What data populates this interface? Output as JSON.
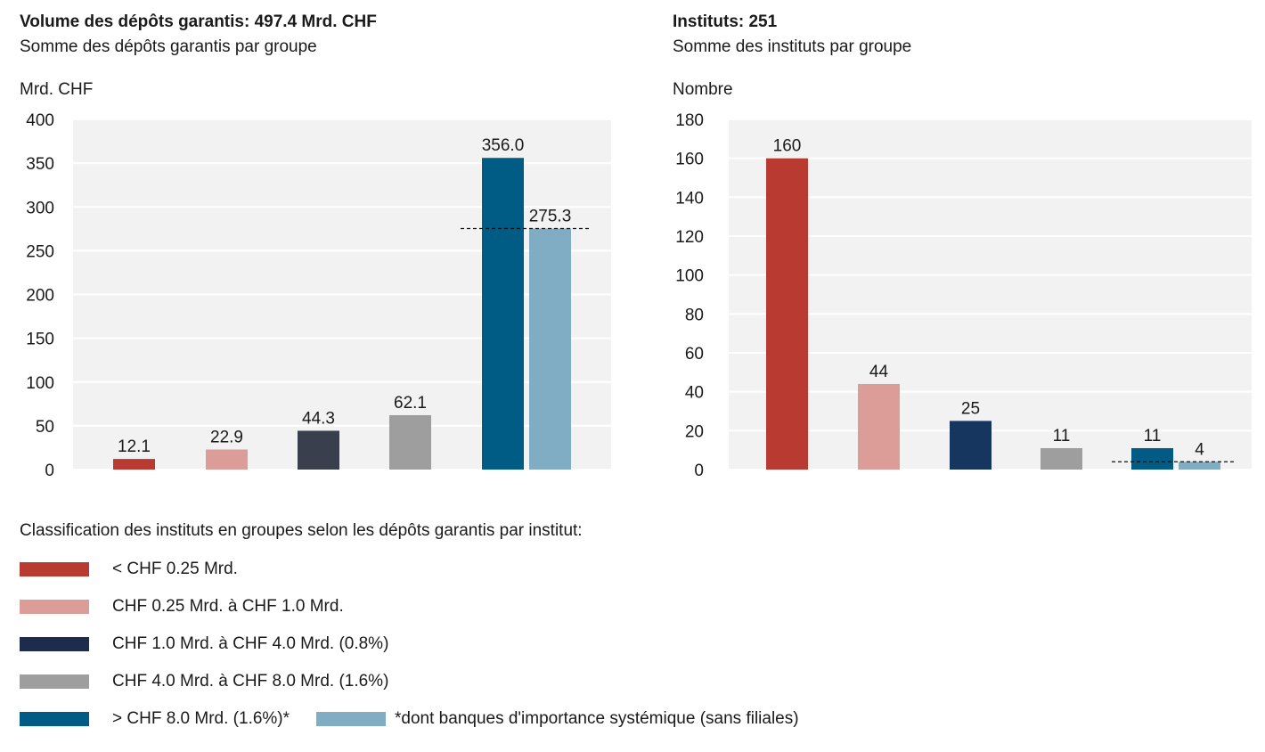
{
  "colors": {
    "g1": "#b83a30",
    "g2": "#dc9c98",
    "g3": "#3a3f4e",
    "g3r": "#16365f",
    "g4": "#9e9e9e",
    "g5": "#005b85",
    "g6": "#80adc4",
    "plot_bg": "#f2f2f2"
  },
  "left": {
    "title": "Volume des dépôts garantis: 497.4 Mrd. CHF",
    "subtitle": "Somme des dépôts garantis par groupe",
    "unit": "Mrd. CHF"
  },
  "right": {
    "title": "Instituts: 251",
    "subtitle": "Somme des instituts par groupe",
    "unit": "Nombre"
  },
  "legend": {
    "heading": "Classification des instituts en groupes selon les dépôts garantis par institut:",
    "items": [
      "< CHF 0.25 Mrd.",
      "CHF 0.25 Mrd. à CHF 1.0 Mrd.",
      "CHF 1.0 Mrd. à CHF 4.0 Mrd. (0.8%)",
      "CHF 4.0 Mrd. à CHF 8.0 Mrd. (1.6%)",
      "> CHF 8.0 Mrd. (1.6%)*",
      "*dont banques d'importance systémique (sans filiales)"
    ]
  },
  "chart_data": [
    {
      "type": "bar",
      "title": "Volume des dépôts garantis: 497.4 Mrd. CHF",
      "subtitle": "Somme des dépôts garantis par groupe",
      "ylabel": "Mrd. CHF",
      "ylim": [
        0,
        400
      ],
      "yticks": [
        0,
        50,
        100,
        150,
        200,
        250,
        300,
        350,
        400
      ],
      "grid": true,
      "series": [
        {
          "name": "< CHF 0.25 Mrd.",
          "color": "#b83a30",
          "value": 12.1,
          "label": "12.1"
        },
        {
          "name": "CHF 0.25 Mrd. à CHF 1.0 Mrd.",
          "color": "#dc9c98",
          "value": 22.9,
          "label": "22.9"
        },
        {
          "name": "CHF 1.0 Mrd. à CHF 4.0 Mrd. (0.8%)",
          "color": "#3a3f4e",
          "value": 44.3,
          "label": "44.3"
        },
        {
          "name": "CHF 4.0 Mrd. à CHF 8.0 Mrd. (1.6%)",
          "color": "#9e9e9e",
          "value": 62.1,
          "label": "62.1"
        },
        {
          "name": "> CHF 8.0 Mrd. (1.6%)*",
          "color": "#005b85",
          "value": 356.0,
          "label": "356.0"
        },
        {
          "name": "*dont banques d'importance systémique (sans filiales)",
          "color": "#80adc4",
          "value": 275.3,
          "label": "275.3"
        }
      ],
      "reference_line": 275.3
    },
    {
      "type": "bar",
      "title": "Instituts: 251",
      "subtitle": "Somme des instituts par groupe",
      "ylabel": "Nombre",
      "ylim": [
        0,
        180
      ],
      "yticks": [
        0,
        20,
        40,
        60,
        80,
        100,
        120,
        140,
        160,
        180
      ],
      "grid": true,
      "series": [
        {
          "name": "< CHF 0.25 Mrd.",
          "color": "#b83a30",
          "value": 160,
          "label": "160"
        },
        {
          "name": "CHF 0.25 Mrd. à CHF 1.0 Mrd.",
          "color": "#dc9c98",
          "value": 44,
          "label": "44"
        },
        {
          "name": "CHF 1.0 Mrd. à CHF 4.0 Mrd. (0.8%)",
          "color": "#16365f",
          "value": 25,
          "label": "25"
        },
        {
          "name": "CHF 4.0 Mrd. à CHF 8.0 Mrd. (1.6%)",
          "color": "#9e9e9e",
          "value": 11,
          "label": "11"
        },
        {
          "name": "> CHF 8.0 Mrd. (1.6%)*",
          "color": "#005b85",
          "value": 11,
          "label": "11"
        },
        {
          "name": "*dont banques d'importance systémique (sans filiales)",
          "color": "#80adc4",
          "value": 4,
          "label": "4"
        }
      ],
      "reference_line": 4
    }
  ]
}
